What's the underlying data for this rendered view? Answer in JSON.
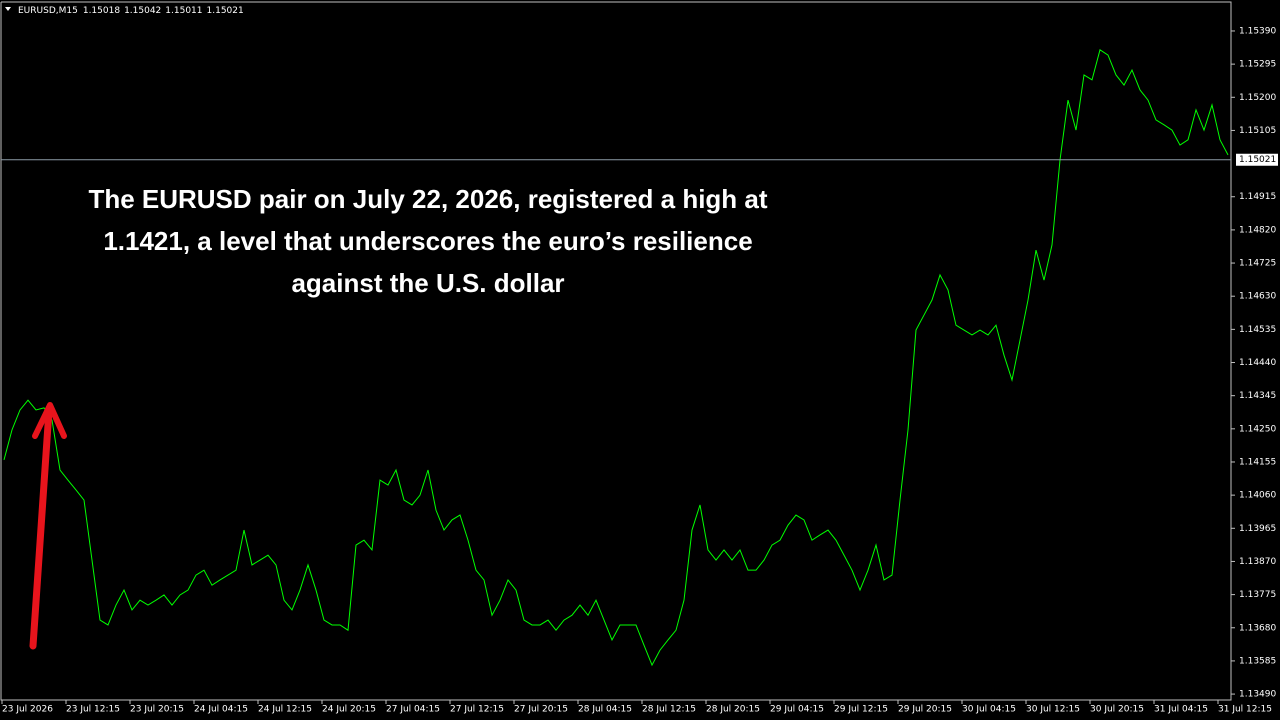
{
  "chart_data": {
    "type": "line",
    "symbol": "EURUSD,M15",
    "ohlc": [
      1.15018,
      1.15042,
      1.15011,
      1.15021
    ],
    "annotation": [
      "The EURUSD pair on July 22, 2026, registered a high at",
      "1.1421, a level that underscores the euro’s resilience",
      "against the U.S. dollar"
    ],
    "current_price": {
      "value": 1.15021,
      "label": "1.15021"
    },
    "color": "#00ff00",
    "grid": false,
    "ylim": [
      1.13473,
      1.15473
    ],
    "yticks": [
      {
        "value": 1.1539,
        "label": "1.15390"
      },
      {
        "value": 1.15295,
        "label": "1.15295"
      },
      {
        "value": 1.152,
        "label": "1.15200"
      },
      {
        "value": 1.15105,
        "label": "1.15105"
      },
      {
        "value": 1.14915,
        "label": "1.14915"
      },
      {
        "value": 1.1482,
        "label": "1.14820"
      },
      {
        "value": 1.14725,
        "label": "1.14725"
      },
      {
        "value": 1.1463,
        "label": "1.14630"
      },
      {
        "value": 1.14535,
        "label": "1.14535"
      },
      {
        "value": 1.1444,
        "label": "1.14440"
      },
      {
        "value": 1.14345,
        "label": "1.14345"
      },
      {
        "value": 1.1425,
        "label": "1.14250"
      },
      {
        "value": 1.14155,
        "label": "1.14155"
      },
      {
        "value": 1.1406,
        "label": "1.14060"
      },
      {
        "value": 1.13965,
        "label": "1.13965"
      },
      {
        "value": 1.1387,
        "label": "1.13870"
      },
      {
        "value": 1.13775,
        "label": "1.13775"
      },
      {
        "value": 1.1368,
        "label": "1.13680"
      },
      {
        "value": 1.13585,
        "label": "1.13585"
      },
      {
        "value": 1.1349,
        "label": "1.13490"
      }
    ],
    "categories": [
      "23 Jul 2026",
      null,
      null,
      null,
      null,
      null,
      null,
      null,
      "23 Jul 12:15",
      null,
      null,
      null,
      null,
      null,
      null,
      null,
      "23 Jul 20:15",
      null,
      null,
      null,
      null,
      null,
      null,
      null,
      "24 Jul 04:15",
      null,
      null,
      null,
      null,
      null,
      null,
      null,
      "24 Jul 12:15",
      null,
      null,
      null,
      null,
      null,
      null,
      null,
      "24 Jul 20:15",
      null,
      null,
      null,
      null,
      null,
      null,
      null,
      "27 Jul 04:15",
      null,
      null,
      null,
      null,
      null,
      null,
      null,
      "27 Jul 12:15",
      null,
      null,
      null,
      null,
      null,
      null,
      null,
      "27 Jul 20:15",
      null,
      null,
      null,
      null,
      null,
      null,
      null,
      "28 Jul 04:15",
      null,
      null,
      null,
      null,
      null,
      null,
      null,
      "28 Jul 12:15",
      null,
      null,
      null,
      null,
      null,
      null,
      null,
      "28 Jul 20:15",
      null,
      null,
      null,
      null,
      null,
      null,
      null,
      "29 Jul 04:15",
      null,
      null,
      null,
      null,
      null,
      null,
      null,
      "29 Jul 12:15",
      null,
      null,
      null,
      null,
      null,
      null,
      null,
      "29 Jul 20:15",
      null,
      null,
      null,
      null,
      null,
      null,
      null,
      "30 Jul 04:15",
      null,
      null,
      null,
      null,
      null,
      null,
      null,
      "30 Jul 12:15",
      null,
      null,
      null,
      null,
      null,
      null,
      null,
      "30 Jul 20:15",
      null,
      null,
      null,
      null,
      null,
      null,
      null,
      "31 Jul 04:15",
      null,
      null,
      null,
      null,
      null,
      null,
      null,
      "31 Jul 12:15",
      null
    ],
    "values": [
      1.14161,
      1.14247,
      1.14304,
      1.14332,
      1.14304,
      1.1431,
      1.14275,
      1.14132,
      1.14103,
      1.14075,
      1.14046,
      1.13874,
      1.13702,
      1.13688,
      1.13745,
      1.13788,
      1.13731,
      1.13759,
      1.13745,
      1.13759,
      1.13774,
      1.13745,
      1.13774,
      1.13788,
      1.13831,
      1.13845,
      1.13802,
      1.13817,
      1.13831,
      1.13845,
      1.1396,
      1.1386,
      1.13874,
      1.13888,
      1.1386,
      1.13759,
      1.13731,
      1.13788,
      1.1386,
      1.13788,
      1.13702,
      1.13688,
      1.13688,
      1.13673,
      1.13917,
      1.13931,
      1.13903,
      1.14103,
      1.14089,
      1.14132,
      1.14046,
      1.14032,
      1.1406,
      1.14132,
      1.14017,
      1.1396,
      1.13989,
      1.14003,
      1.13931,
      1.13845,
      1.13817,
      1.13716,
      1.13759,
      1.13817,
      1.13788,
      1.13702,
      1.13688,
      1.13688,
      1.13702,
      1.13673,
      1.13702,
      1.13716,
      1.13745,
      1.13716,
      1.13759,
      1.13702,
      1.13645,
      1.13688,
      1.13688,
      1.13688,
      1.1363,
      1.13573,
      1.13616,
      1.13645,
      1.13673,
      1.13759,
      1.1396,
      1.14032,
      1.13903,
      1.13874,
      1.13903,
      1.13874,
      1.13903,
      1.13845,
      1.13845,
      1.13874,
      1.13917,
      1.13931,
      1.13974,
      1.14003,
      1.13989,
      1.13931,
      1.13946,
      1.1396,
      1.13931,
      1.13888,
      1.13845,
      1.13788,
      1.13845,
      1.13917,
      1.13817,
      1.13831,
      1.14046,
      1.14247,
      1.14533,
      1.14576,
      1.14619,
      1.14691,
      1.14648,
      1.14547,
      1.14533,
      1.14519,
      1.14533,
      1.14519,
      1.14547,
      1.14461,
      1.1439,
      1.14504,
      1.14619,
      1.14762,
      1.14676,
      1.14777,
      1.1502,
      1.15192,
      1.15106,
      1.15264,
      1.1525,
      1.15336,
      1.15321,
      1.15264,
      1.15235,
      1.15278,
      1.15221,
      1.15192,
      1.15135,
      1.15121,
      1.15106,
      1.15063,
      1.15078,
      1.15164,
      1.15106,
      1.15178,
      1.15078,
      1.15035
    ]
  }
}
